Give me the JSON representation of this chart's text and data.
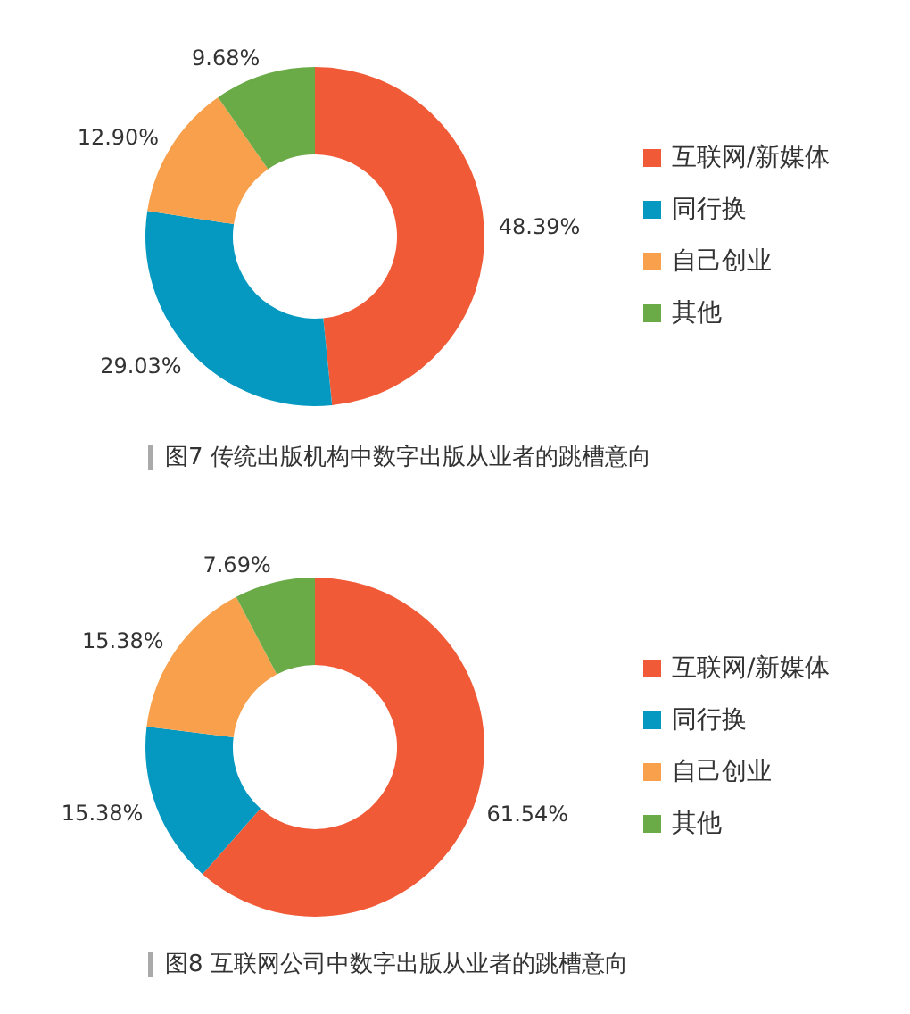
{
  "chart_data": [
    {
      "type": "donut",
      "categories": [
        "互联网/新媒体",
        "同行换",
        "自己创业",
        "其他"
      ],
      "values": [
        48.39,
        29.03,
        12.9,
        9.68
      ],
      "value_labels": [
        "48.39%",
        "29.03%",
        "12.90%",
        "9.68%"
      ],
      "colors": [
        "#f15a37",
        "#0598c0",
        "#f8a04b",
        "#6aab47"
      ],
      "legend": "right",
      "annotations": [
        "图7  传统出版机构中数字出版从业者的跳槽意向"
      ]
    },
    {
      "type": "donut",
      "categories": [
        "互联网/新媒体",
        "同行换",
        "自己创业",
        "其他"
      ],
      "values": [
        61.54,
        15.38,
        15.38,
        7.69
      ],
      "value_labels": [
        "61.54%",
        "15.38%",
        "15.38%",
        "7.69%"
      ],
      "colors": [
        "#f15a37",
        "#0598c0",
        "#f8a04b",
        "#6aab47"
      ],
      "legend": "right",
      "annotations": [
        "图8  互联网公司中数字出版从业者的跳槽意向"
      ]
    }
  ]
}
